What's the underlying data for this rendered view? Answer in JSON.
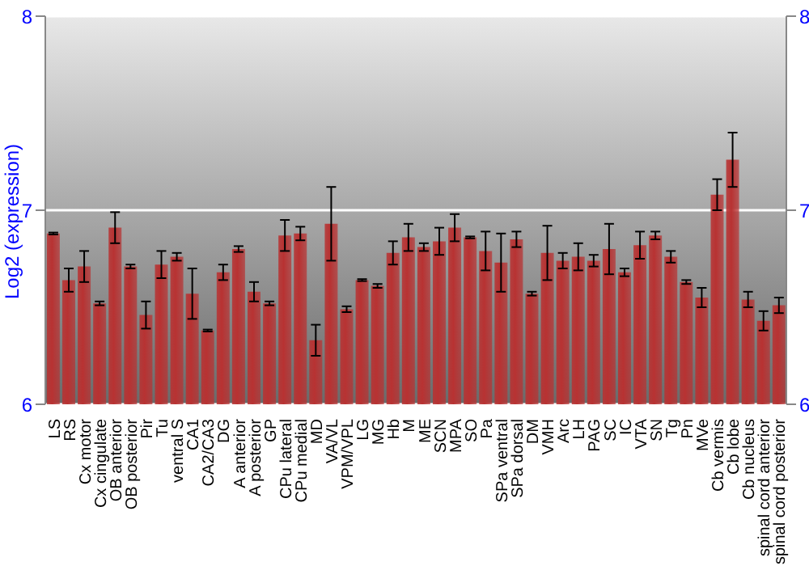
{
  "chart_data": {
    "type": "bar",
    "ylabel": "Log2 (expression)",
    "categories": [
      "LS",
      "RS",
      "Cx motor",
      "Cx cingulate",
      "OB anterior",
      "OB posterior",
      "Pir",
      "Tu",
      "ventral S",
      "CA1",
      "CA2/CA3",
      "DG",
      "A anterior",
      "A posterior",
      "GP",
      "CPu lateral",
      "CPu medial",
      "MD",
      "VA/VL",
      "VPM/VPL",
      "LG",
      "MG",
      "Hb",
      "M",
      "ME",
      "SCN",
      "MPA",
      "SO",
      "Pa",
      "SPa ventral",
      "SPa dorsal",
      "DM",
      "VMH",
      "Arc",
      "LH",
      "PAG",
      "SC",
      "IC",
      "VTA",
      "SN",
      "Tg",
      "Pn",
      "MVe",
      "Cb vermis",
      "Cb lobe",
      "Cb nucleus",
      "spinal cord anterior",
      "spinal cord posterior"
    ],
    "values": [
      6.88,
      6.64,
      6.71,
      6.52,
      6.91,
      6.71,
      6.46,
      6.72,
      6.76,
      6.57,
      6.38,
      6.68,
      6.8,
      6.58,
      6.52,
      6.87,
      6.88,
      6.33,
      6.93,
      6.49,
      6.64,
      6.61,
      6.78,
      6.86,
      6.81,
      6.84,
      6.91,
      6.86,
      6.79,
      6.73,
      6.85,
      6.57,
      6.78,
      6.74,
      6.76,
      6.74,
      6.8,
      6.68,
      6.82,
      6.87,
      6.76,
      6.63,
      6.55,
      7.08,
      7.26,
      6.54,
      6.43,
      6.51
    ],
    "errors": [
      0.005,
      0.06,
      0.08,
      0.01,
      0.08,
      0.01,
      0.07,
      0.07,
      0.02,
      0.13,
      0.005,
      0.04,
      0.015,
      0.05,
      0.01,
      0.08,
      0.035,
      0.08,
      0.19,
      0.015,
      0.005,
      0.01,
      0.06,
      0.07,
      0.02,
      0.07,
      0.07,
      0.005,
      0.1,
      0.15,
      0.04,
      0.01,
      0.14,
      0.04,
      0.07,
      0.03,
      0.13,
      0.02,
      0.07,
      0.02,
      0.03,
      0.01,
      0.05,
      0.08,
      0.14,
      0.04,
      0.05,
      0.04
    ],
    "color": "#b83232",
    "ylim": [
      6,
      8
    ],
    "yticks": [
      6,
      7,
      8
    ],
    "y2lim": [
      6,
      8
    ],
    "y2ticks": [
      6,
      7,
      8
    ],
    "grid": "y"
  }
}
